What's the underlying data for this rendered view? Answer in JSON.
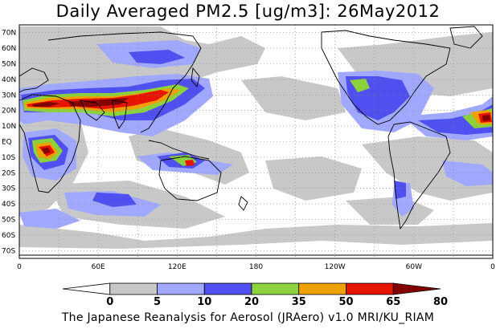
{
  "title": "Daily Averaged PM2.5 [ug/m3]: 26May2012",
  "footer": "The Japanese Reanalysis for Aerosol (JRAero) v1.0 MRI/KU_RIAM",
  "lat_labels": [
    "70N",
    "60N",
    "50N",
    "40N",
    "30N",
    "20N",
    "10N",
    "EQ",
    "10S",
    "20S",
    "30S",
    "40S",
    "50S",
    "60S",
    "70S"
  ],
  "lon_labels": [
    "0",
    "60E",
    "120E",
    "180",
    "120W",
    "60W",
    "0"
  ],
  "colorbar": {
    "ticks": [
      "0",
      "5",
      "10",
      "20",
      "35",
      "50",
      "65",
      "80"
    ],
    "colors": [
      "#ffffff",
      "#c8c8c8",
      "#a0a8ff",
      "#5050f0",
      "#8cd23c",
      "#f0a000",
      "#e61400",
      "#820000"
    ]
  },
  "colors": {
    "land_outline": "#000000",
    "grid_dots": "#888888"
  }
}
